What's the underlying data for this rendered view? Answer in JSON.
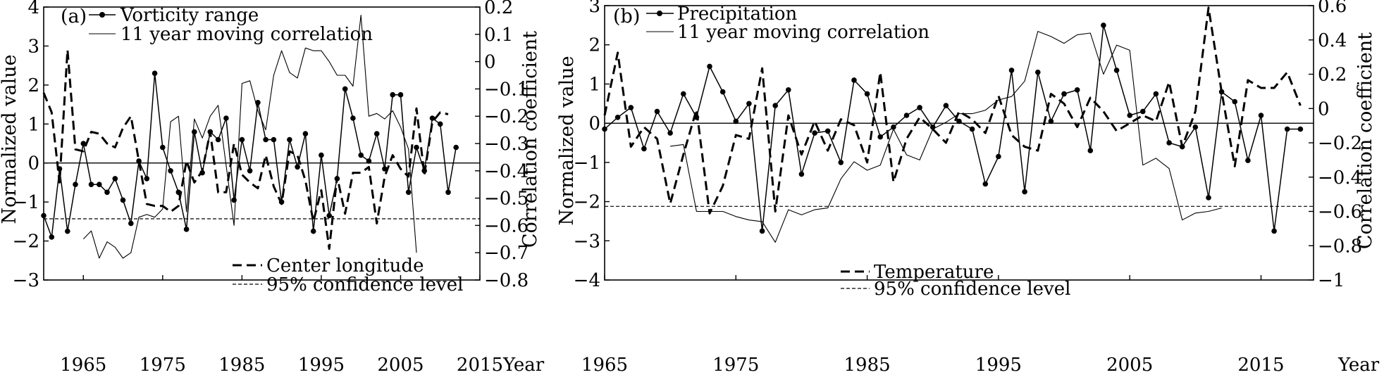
{
  "chart_data": [
    {
      "type": "line",
      "panel_label": "(a)",
      "xlim": [
        1960,
        2015
      ],
      "xticks": [
        1965,
        1975,
        1985,
        1995,
        2005,
        2015
      ],
      "xlabel_right": "Year",
      "ylabel": "Normalized value",
      "ylim": [
        -3,
        4
      ],
      "yticks": [
        -3,
        -2,
        -1,
        0,
        1,
        2,
        3,
        4
      ],
      "y2label": "Correlation coefficient",
      "y2lim": [
        -0.8,
        0.2
      ],
      "y2ticks": [
        "0.2",
        "0.1",
        "0",
        "-0.1",
        "-0.2",
        "-0.3",
        "-0.4",
        "-0.5",
        "-0.6",
        "-0.7",
        "-0.8"
      ],
      "zero_line": true,
      "legend_top": [
        "Vorticity range",
        "11 year moving correlation"
      ],
      "legend_bottom": [
        "Center longitude",
        "95% confidence level"
      ],
      "series": [
        {
          "name": "Vorticity range",
          "style": "line-dot",
          "axis": "left",
          "x": [
            1960,
            1961,
            1962,
            1963,
            1964,
            1965,
            1966,
            1967,
            1968,
            1969,
            1970,
            1971,
            1972,
            1973,
            1974,
            1975,
            1976,
            1977,
            1978,
            1979,
            1980,
            1981,
            1982,
            1983,
            1984,
            1985,
            1986,
            1987,
            1988,
            1989,
            1990,
            1991,
            1992,
            1993,
            1994,
            1995,
            1996,
            1997,
            1998,
            1999,
            2000,
            2001,
            2002,
            2003,
            2004,
            2005,
            2006,
            2007,
            2008,
            2009,
            2010,
            2011,
            2012
          ],
          "y": [
            -1.35,
            -1.9,
            -0.15,
            -1.75,
            -0.55,
            0.5,
            -0.55,
            -0.55,
            -0.75,
            -0.4,
            -0.95,
            -1.55,
            0.05,
            -0.4,
            2.3,
            0.4,
            -0.2,
            -0.75,
            -1.7,
            0.8,
            -0.25,
            0.8,
            0.6,
            1.15,
            -0.95,
            0.6,
            -0.2,
            1.55,
            0.6,
            0.6,
            -1.0,
            0.6,
            -0.1,
            0.75,
            -1.75,
            0.2,
            -1.35,
            -0.4,
            1.9,
            1.15,
            0.2,
            0.05,
            0.75,
            -0.15,
            1.75,
            1.75,
            -0.75,
            0.4,
            -0.2,
            1.15,
            1.0,
            -0.75,
            0.4
          ]
        },
        {
          "name": "Center longitude",
          "style": "dashed-thick",
          "axis": "left",
          "x": [
            1960,
            1961,
            1962,
            1963,
            1964,
            1965,
            1966,
            1967,
            1968,
            1969,
            1970,
            1971,
            1972,
            1973,
            1974,
            1975,
            1976,
            1977,
            1978,
            1979,
            1980,
            1981,
            1982,
            1983,
            1984,
            1985,
            1986,
            1987,
            1988,
            1989,
            1990,
            1991,
            1992,
            1993,
            1994,
            1995,
            1996,
            1997,
            1998,
            1999,
            2000,
            2001,
            2002,
            2003,
            2004,
            2005,
            2006,
            2007,
            2008,
            2009,
            2010,
            2011
          ],
          "y": [
            1.8,
            1.3,
            -0.5,
            2.9,
            0.35,
            0.3,
            0.8,
            0.75,
            0.5,
            0.4,
            0.9,
            1.2,
            0.05,
            -1.05,
            -1.1,
            -1.1,
            -1.25,
            -1.1,
            0.05,
            -0.5,
            -0.2,
            0.8,
            -0.75,
            -0.75,
            0.5,
            -0.3,
            -0.5,
            -0.65,
            0.2,
            -0.6,
            -1.05,
            0.3,
            0.2,
            -0.45,
            -1.5,
            -0.7,
            -2.2,
            -0.35,
            -1.3,
            -0.25,
            -0.25,
            -0.1,
            -1.55,
            -0.35,
            0.2,
            -0.15,
            -0.35,
            1.4,
            -0.3,
            1.05,
            1.3,
            1.25
          ]
        },
        {
          "name": "11 year moving correlation",
          "style": "line-thin",
          "axis": "right",
          "x": [
            1965,
            1966,
            1967,
            1968,
            1969,
            1970,
            1971,
            1972,
            1973,
            1974,
            1975,
            1976,
            1977,
            1978,
            1979,
            1980,
            1981,
            1982,
            1983,
            1984,
            1985,
            1986,
            1987,
            1988,
            1989,
            1990,
            1991,
            1992,
            1993,
            1994,
            1995,
            1996,
            1997,
            1998,
            1999,
            2000,
            2001,
            2002,
            2003,
            2004,
            2005,
            2006,
            2007
          ],
          "y": [
            -0.65,
            -0.62,
            -0.72,
            -0.66,
            -0.68,
            -0.72,
            -0.7,
            -0.57,
            -0.56,
            -0.57,
            -0.54,
            -0.22,
            -0.2,
            -0.55,
            -0.21,
            -0.28,
            -0.2,
            -0.16,
            -0.38,
            -0.6,
            -0.08,
            -0.07,
            -0.18,
            -0.25,
            -0.05,
            0.04,
            -0.04,
            -0.06,
            0.05,
            0.04,
            0.04,
            0.0,
            -0.05,
            -0.05,
            -0.09,
            0.17,
            -0.2,
            -0.19,
            -0.21,
            -0.18,
            -0.24,
            -0.32,
            -0.7
          ]
        },
        {
          "name": "95% confidence level",
          "style": "dashed-thin",
          "axis": "left",
          "x": [
            1960,
            2015
          ],
          "y": [
            -1.43,
            -1.43
          ]
        }
      ]
    },
    {
      "type": "line",
      "panel_label": "(b)",
      "xlim": [
        1965,
        2019
      ],
      "xticks": [
        1965,
        1975,
        1985,
        1995,
        2005,
        2015
      ],
      "xlabel_right": "Year",
      "ylabel": "Normalized value",
      "ylim": [
        -4,
        3
      ],
      "yticks": [
        -4,
        -3,
        -2,
        -1,
        0,
        1,
        2,
        3
      ],
      "y2label": "Correlation coefficient",
      "y2lim": [
        -1.0,
        0.6
      ],
      "y2ticks": [
        "0.6",
        "0.4",
        "0.2",
        "0",
        "-0.2",
        "-0.4",
        "-0.6",
        "-0.8",
        "-1"
      ],
      "zero_line": true,
      "legend_top": [
        "Precipitation",
        "11 year moving correlation"
      ],
      "legend_bottom": [
        "Temperature",
        "95% confidence level"
      ],
      "series": [
        {
          "name": "Precipitation",
          "style": "line-dot",
          "axis": "left",
          "x": [
            1965,
            1966,
            1967,
            1968,
            1969,
            1970,
            1971,
            1972,
            1973,
            1974,
            1975,
            1976,
            1977,
            1978,
            1979,
            1980,
            1981,
            1982,
            1983,
            1984,
            1985,
            1986,
            1987,
            1988,
            1989,
            1990,
            1991,
            1992,
            1993,
            1994,
            1995,
            1996,
            1997,
            1998,
            1999,
            2000,
            2001,
            2002,
            2003,
            2004,
            2005,
            2006,
            2007,
            2008,
            2009,
            2010,
            2011,
            2012,
            2013,
            2014,
            2015,
            2016,
            2017,
            2018
          ],
          "y": [
            -0.15,
            0.15,
            0.4,
            -0.65,
            0.3,
            -0.25,
            0.75,
            0.15,
            1.45,
            0.8,
            0.05,
            0.5,
            -2.75,
            0.45,
            0.85,
            -1.3,
            -0.25,
            -0.2,
            -1.0,
            1.1,
            0.75,
            -0.35,
            -0.1,
            0.2,
            0.4,
            -0.1,
            0.45,
            0.05,
            -0.15,
            -1.55,
            -0.85,
            1.35,
            -1.75,
            1.3,
            0.05,
            0.75,
            0.85,
            -0.7,
            2.5,
            1.35,
            0.2,
            0.3,
            0.75,
            -0.5,
            -0.6,
            -0.1,
            -1.9,
            0.8,
            0.55,
            -0.95,
            0.2,
            -2.75,
            -0.15,
            -0.15
          ]
        },
        {
          "name": "Temperature",
          "style": "dashed-thick",
          "axis": "left",
          "x": [
            1965,
            1966,
            1967,
            1968,
            1969,
            1970,
            1971,
            1972,
            1973,
            1974,
            1975,
            1976,
            1977,
            1978,
            1979,
            1980,
            1981,
            1982,
            1983,
            1984,
            1985,
            1986,
            1987,
            1988,
            1989,
            1990,
            1991,
            1992,
            1993,
            1994,
            1995,
            1996,
            1997,
            1998,
            1999,
            2000,
            2001,
            2002,
            2003,
            2004,
            2005,
            2006,
            2007,
            2008,
            2009,
            2010,
            2011,
            2012,
            2013,
            2014,
            2015,
            2016,
            2017,
            2018
          ],
          "y": [
            0.2,
            1.8,
            -0.6,
            -0.1,
            -0.4,
            -2.05,
            -0.8,
            0.35,
            -2.3,
            -1.6,
            -0.3,
            -0.4,
            1.4,
            -2.25,
            0.2,
            -0.8,
            0.05,
            -0.7,
            0.1,
            -0.05,
            -1.0,
            1.3,
            -1.5,
            -0.4,
            0.15,
            -0.15,
            -0.5,
            0.3,
            0.1,
            -0.25,
            0.7,
            -0.3,
            -0.6,
            -0.7,
            0.75,
            0.5,
            -0.1,
            0.65,
            0.3,
            -0.2,
            0.0,
            0.2,
            0.05,
            1.05,
            -0.6,
            0.3,
            2.95,
            0.8,
            -1.1,
            1.1,
            0.9,
            0.9,
            1.3,
            0.45
          ]
        },
        {
          "name": "11 year moving correlation",
          "style": "line-thin",
          "axis": "right",
          "x": [
            1970,
            1971,
            1972,
            1973,
            1974,
            1975,
            1976,
            1977,
            1978,
            1979,
            1980,
            1981,
            1982,
            1983,
            1984,
            1985,
            1986,
            1987,
            1988,
            1989,
            1990,
            1991,
            1992,
            1993,
            1994,
            1995,
            1996,
            1997,
            1998,
            1999,
            2000,
            2001,
            2002,
            2003,
            2004,
            2005,
            2006,
            2007,
            2008,
            2009,
            2010,
            2011,
            2012
          ],
          "y": [
            -0.22,
            -0.21,
            -0.6,
            -0.6,
            -0.6,
            -0.63,
            -0.65,
            -0.66,
            -0.78,
            -0.59,
            -0.62,
            -0.59,
            -0.58,
            -0.41,
            -0.31,
            -0.36,
            -0.33,
            -0.12,
            -0.27,
            -0.3,
            -0.12,
            -0.08,
            -0.03,
            -0.03,
            -0.01,
            0.05,
            0.07,
            0.16,
            0.45,
            0.42,
            0.38,
            0.43,
            0.44,
            0.2,
            0.37,
            0.34,
            -0.33,
            -0.29,
            -0.35,
            -0.65,
            -0.61,
            -0.6,
            -0.58
          ]
        },
        {
          "name": "95% confidence level",
          "style": "dashed-thin",
          "axis": "left",
          "x": [
            1965,
            2019
          ],
          "y": [
            -2.12,
            -2.12
          ]
        }
      ]
    }
  ]
}
